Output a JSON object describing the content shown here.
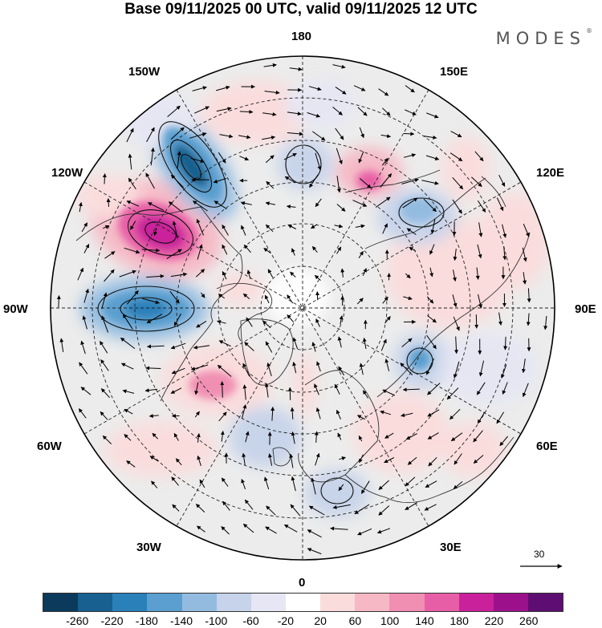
{
  "title": "Base 09/11/2025 00 UTC, valid 09/11/2025 12 UTC",
  "brand": "MODES",
  "brand_mark": "®",
  "longitude_labels": {
    "n180": "180",
    "w150": "150W",
    "e150": "150E",
    "w120": "120W",
    "e120": "120E",
    "w90": "90W",
    "e90": "90E",
    "w60": "60W",
    "e60": "60E",
    "w30": "30W",
    "e30": "30E",
    "s0": "0"
  },
  "reference_vector": {
    "label": "30"
  },
  "colorbar": {
    "colors": [
      "#0b3a5c",
      "#17608f",
      "#2a80b9",
      "#5a9fcf",
      "#93bbe0",
      "#c6d3ea",
      "#e6e6f4",
      "#ffffff",
      "#fbdcdc",
      "#f6b8c4",
      "#f08fb2",
      "#e75ea6",
      "#c9219b",
      "#9c118b",
      "#5e0d73"
    ],
    "ticks": [
      "-260",
      "-220",
      "-180",
      "-140",
      "-100",
      "-60",
      "-20",
      "20",
      "60",
      "100",
      "140",
      "180",
      "220",
      "260"
    ]
  }
}
